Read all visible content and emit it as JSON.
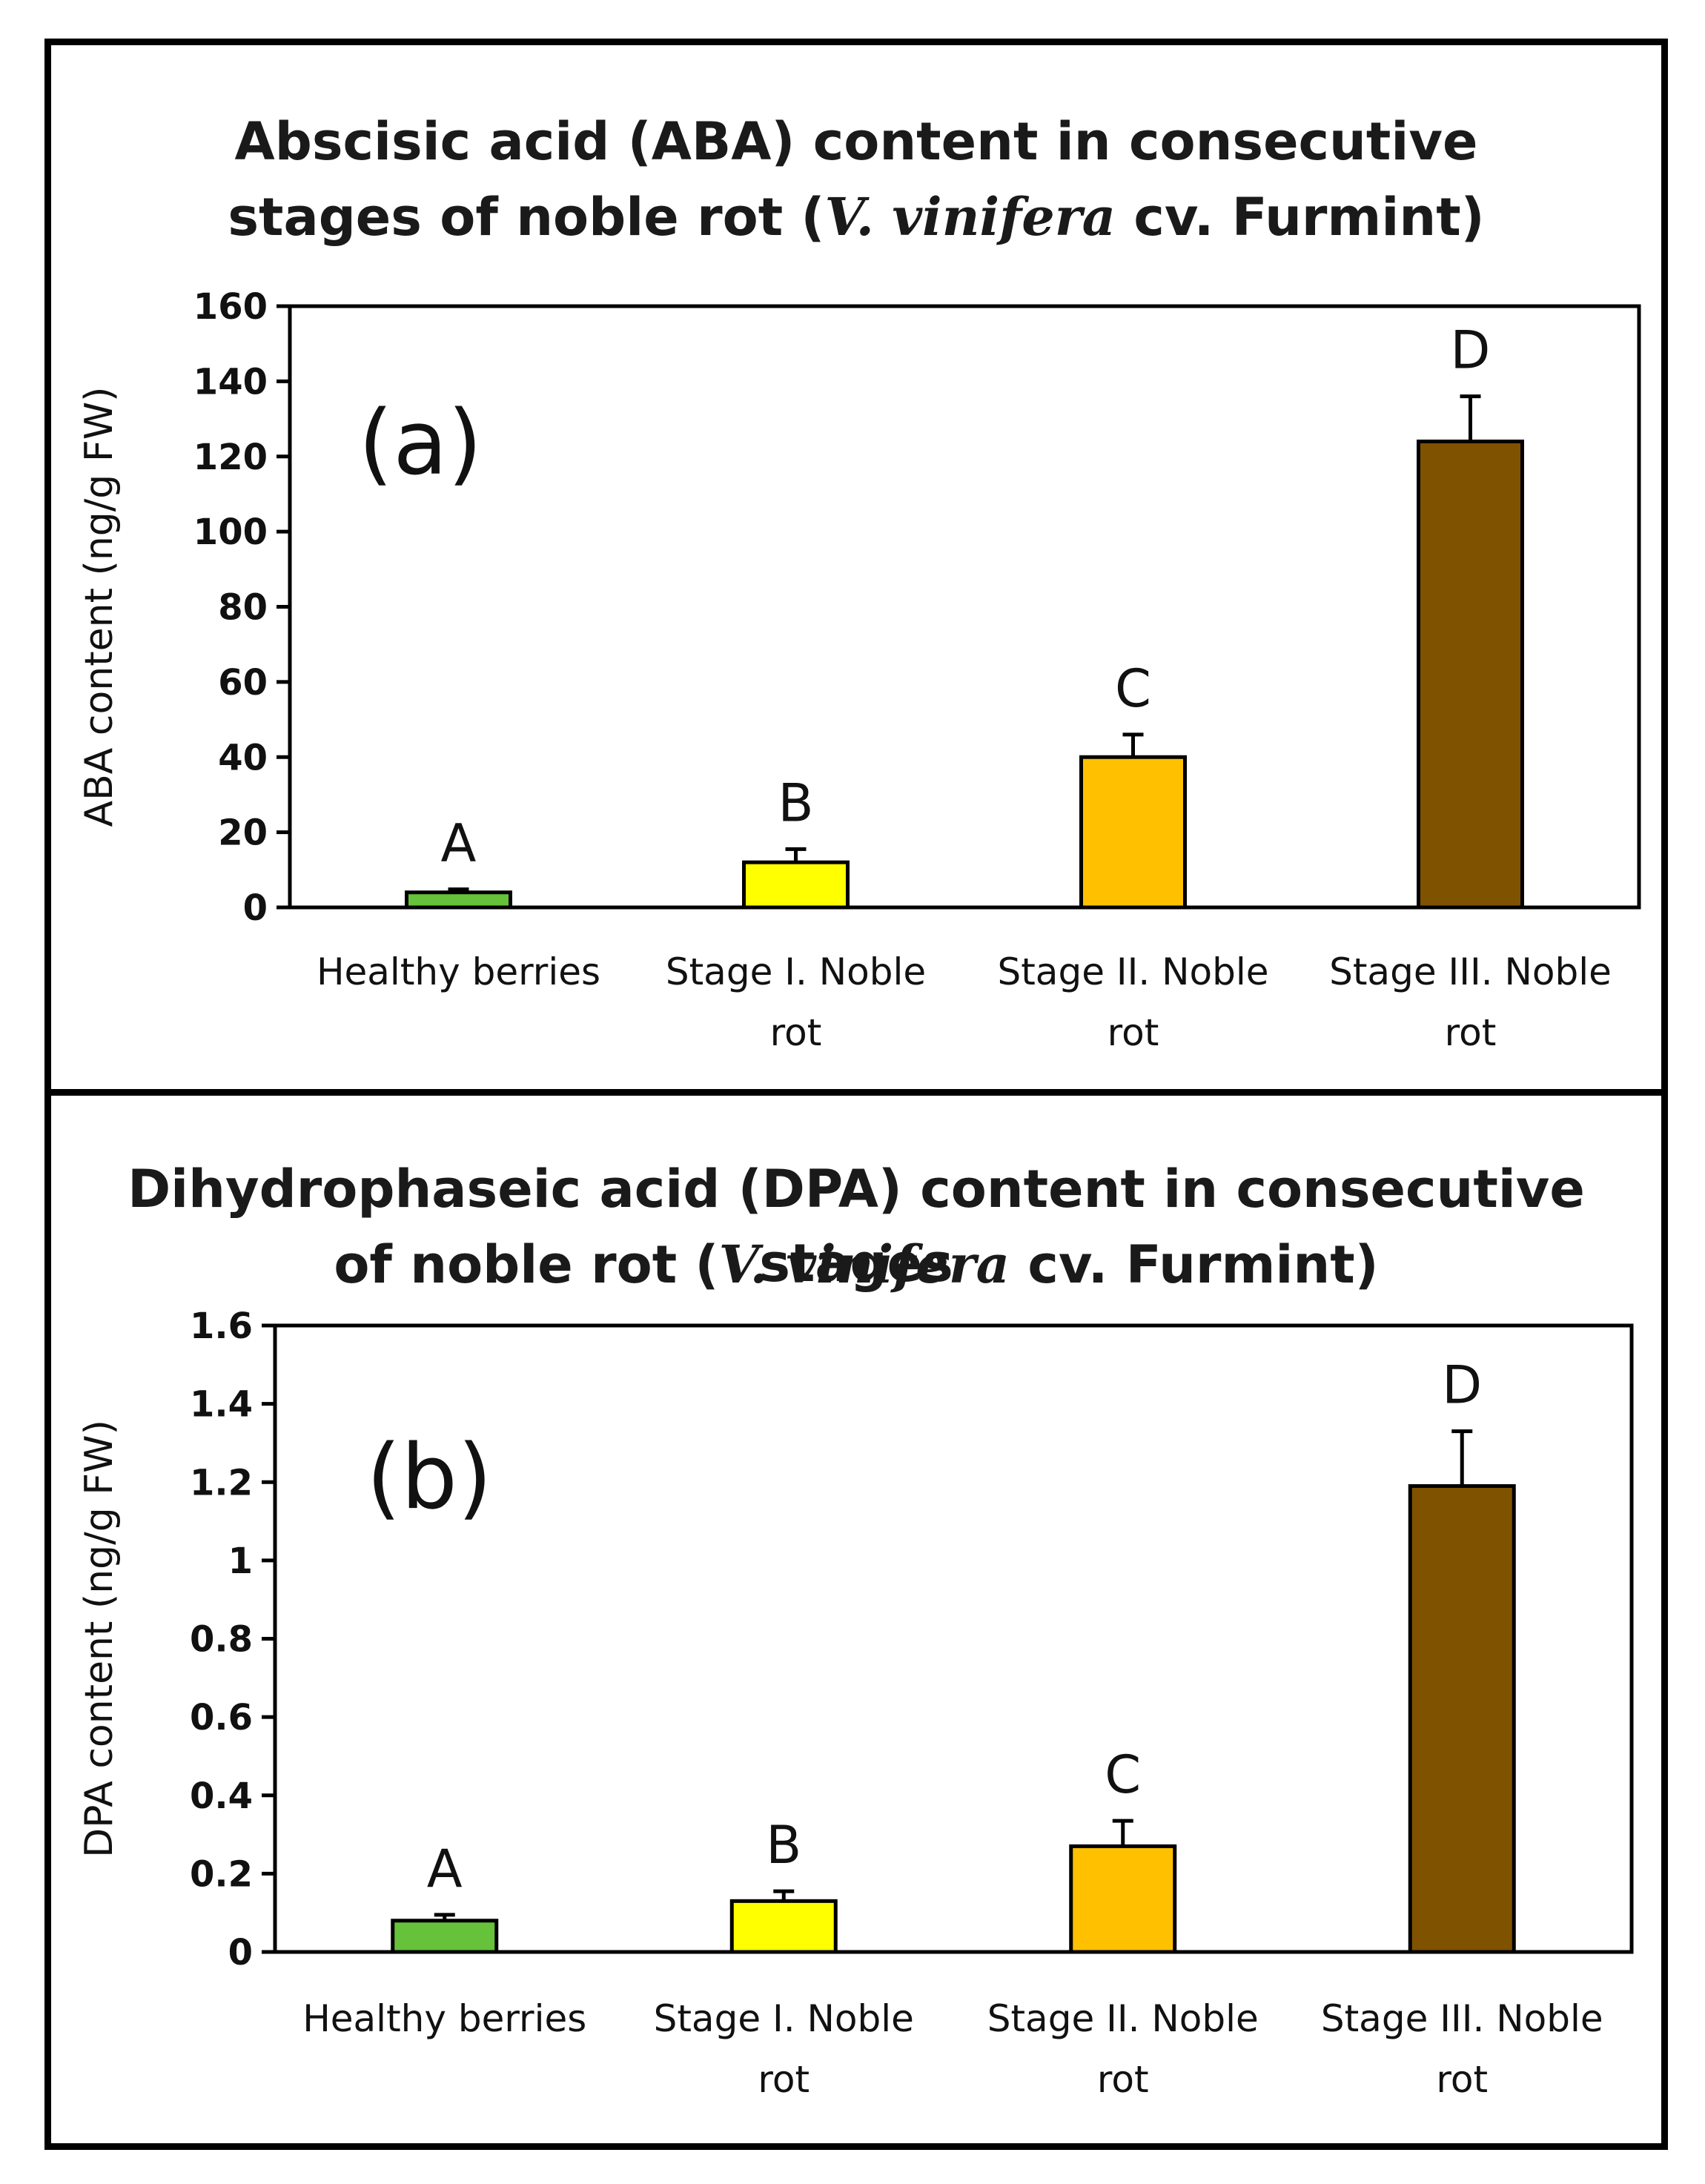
{
  "colors": {
    "healthy": "#66c23a",
    "stage1": "#ffff00",
    "stage2": "#ffc000",
    "stage3": "#7f5200",
    "axis": "#000000"
  },
  "chart_data": [
    {
      "type": "bar",
      "title_line1": "Abscisic acid (ABA) content in consecutive",
      "title_line2_pre": "stages of noble rot (",
      "title_line2_italic": "V. vinifera",
      "title_line2_post": " cv. Furmint)",
      "panel_label": "(a)",
      "ylabel": "ABA content (ng/g FW)",
      "ylim": [
        0,
        160
      ],
      "yticks": [
        0,
        20,
        40,
        60,
        80,
        100,
        120,
        140,
        160
      ],
      "categories": [
        [
          "Healthy berries"
        ],
        [
          "Stage I. Noble",
          "rot"
        ],
        [
          "Stage II. Noble",
          "rot"
        ],
        [
          "Stage III. Noble",
          "rot"
        ]
      ],
      "values": [
        4,
        12,
        40,
        124
      ],
      "errors": [
        0.8,
        3.5,
        6,
        12
      ],
      "letters": [
        "A",
        "B",
        "C",
        "D"
      ]
    },
    {
      "type": "bar",
      "title_line1": "Dihydrophaseic acid (DPA) content in consecutive stages",
      "title_line2_pre": "of noble rot (",
      "title_line2_italic": "V. vinifera",
      "title_line2_post": " cv. Furmint)",
      "panel_label": "(b)",
      "ylabel": "DPA content (ng/g FW)",
      "ylim": [
        0,
        1.6
      ],
      "yticks": [
        "0",
        "0.2",
        "0.4",
        "0.6",
        "0.8",
        "1",
        "1.2",
        "1.4",
        "1.6"
      ],
      "categories": [
        [
          "Healthy berries"
        ],
        [
          "Stage I. Noble",
          "rot"
        ],
        [
          "Stage II. Noble",
          "rot"
        ],
        [
          "Stage III. Noble",
          "rot"
        ]
      ],
      "values": [
        0.08,
        0.13,
        0.27,
        1.19
      ],
      "errors": [
        0.015,
        0.025,
        0.065,
        0.14
      ],
      "letters": [
        "A",
        "B",
        "C",
        "D"
      ]
    }
  ]
}
